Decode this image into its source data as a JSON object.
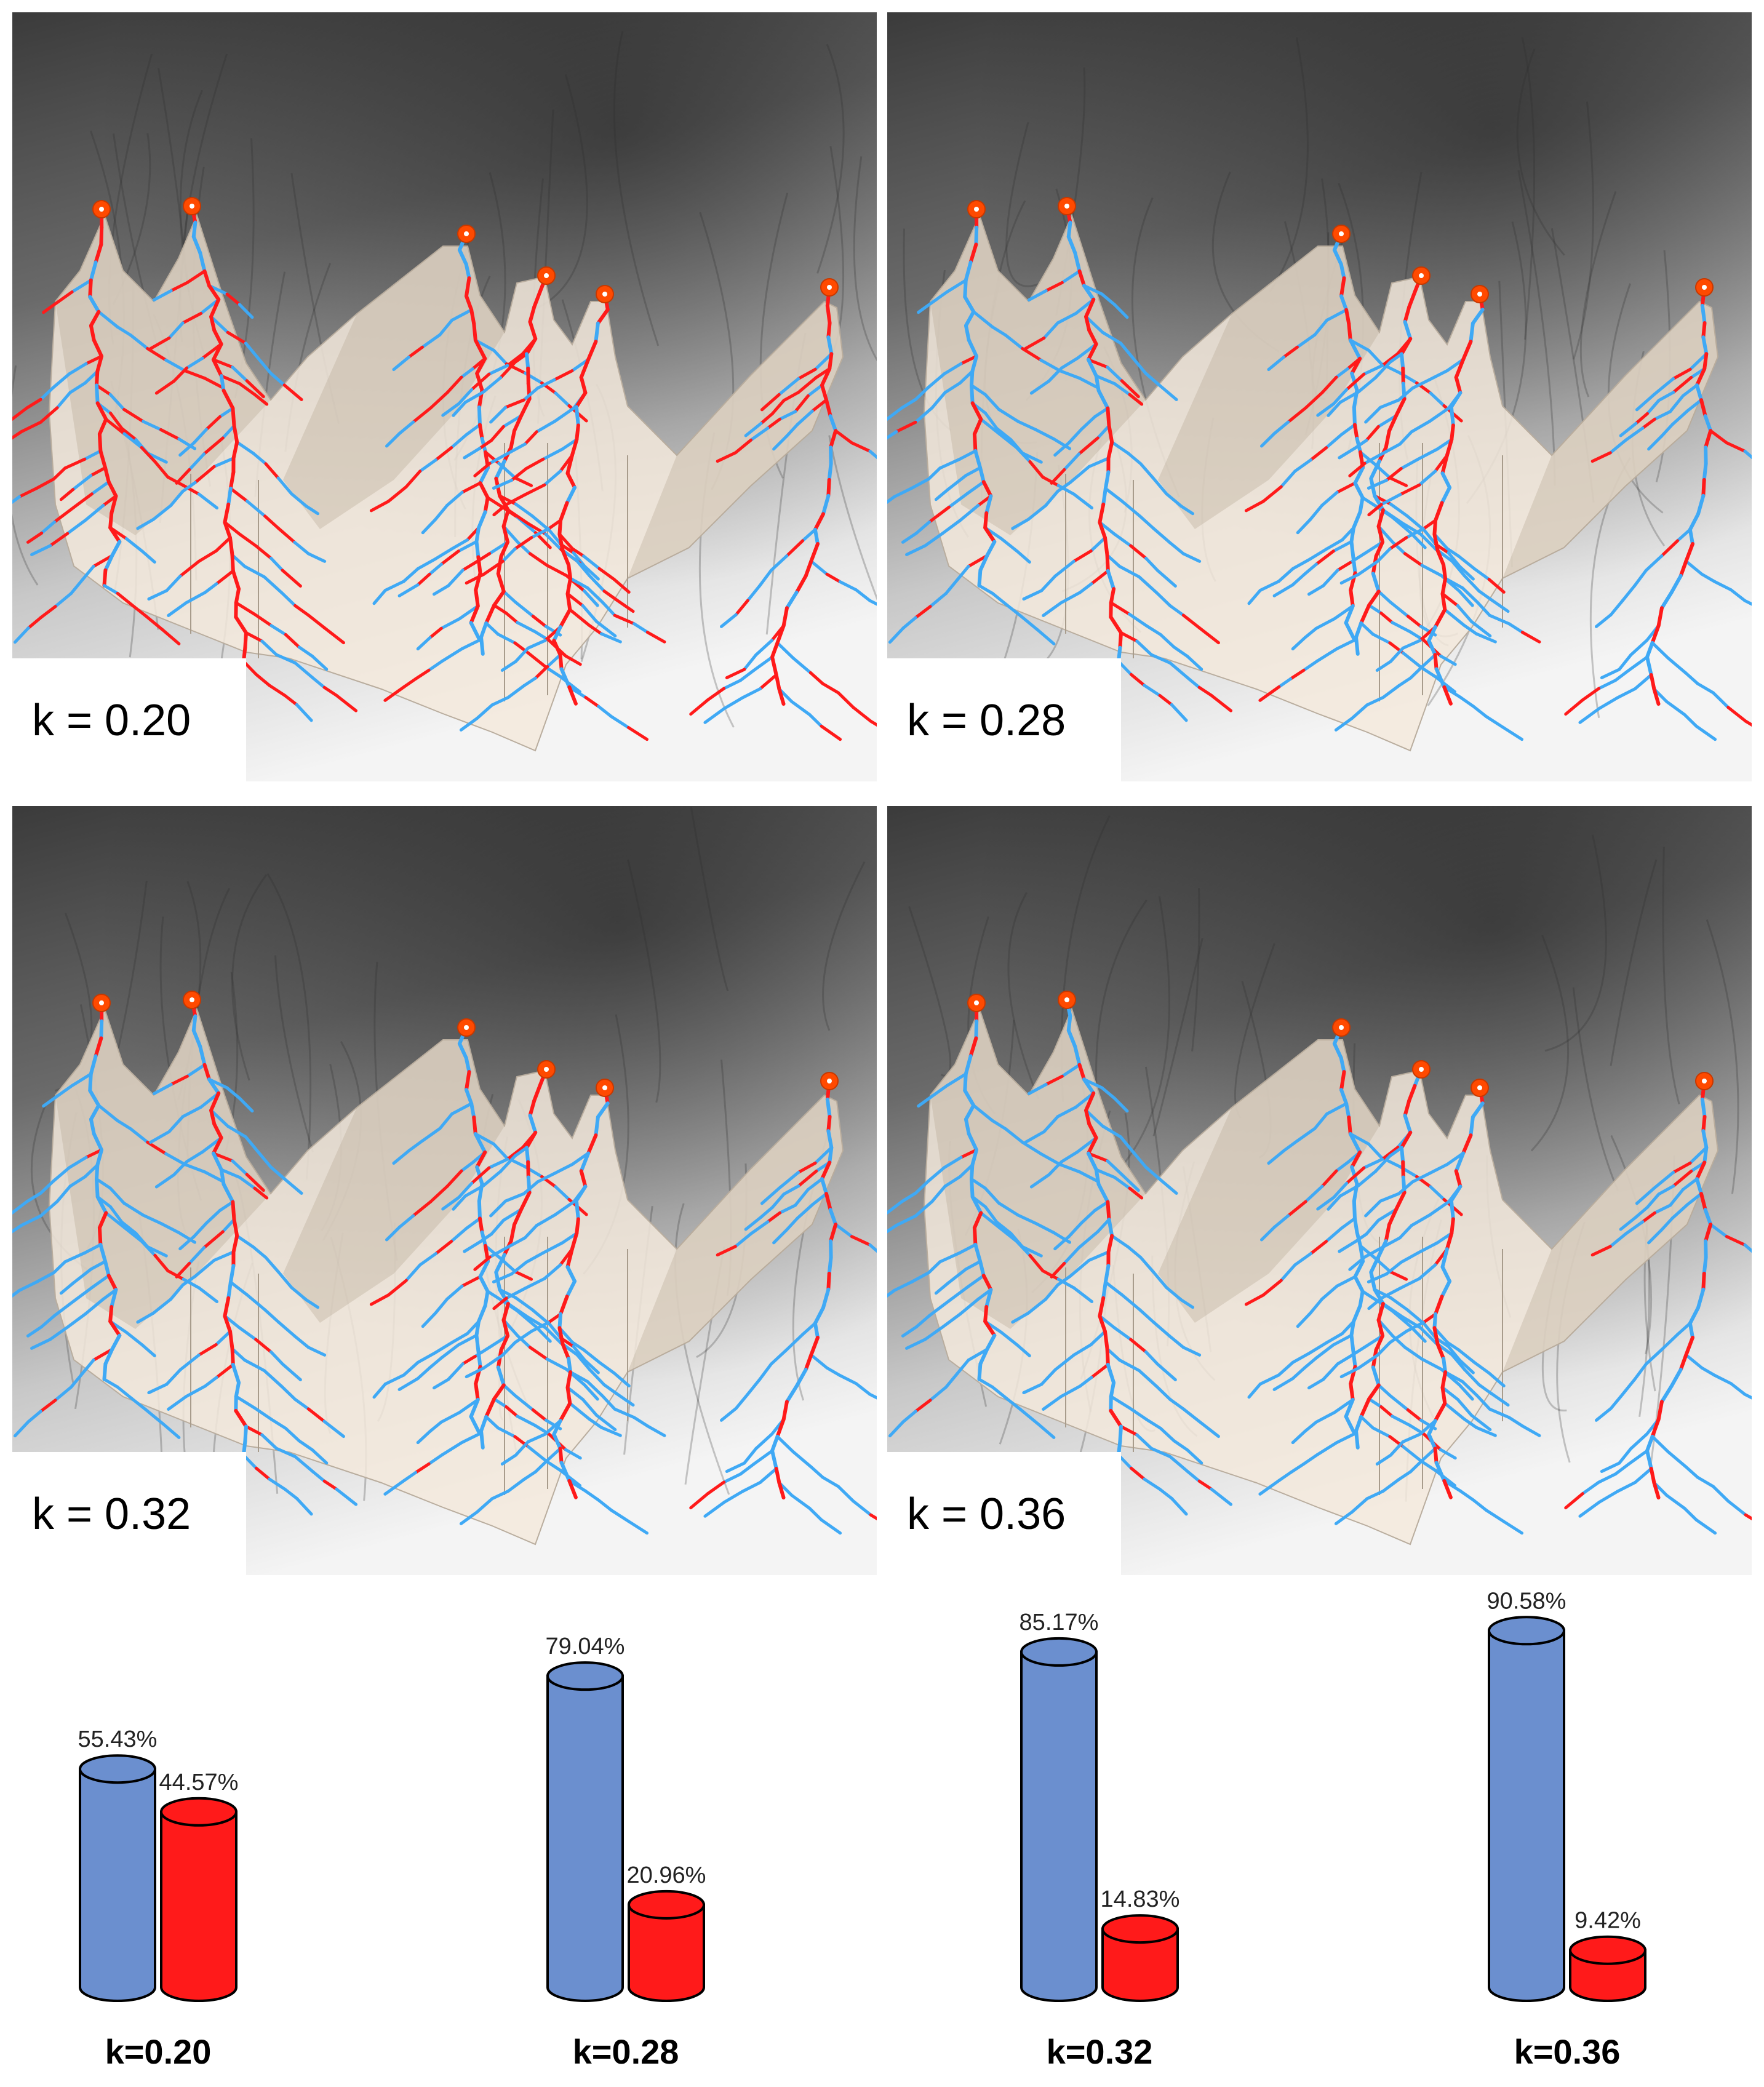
{
  "maps": [
    {
      "label": "k = 0.20"
    },
    {
      "label": "k = 0.28"
    },
    {
      "label": "k = 0.32"
    },
    {
      "label": "k = 0.36"
    }
  ],
  "colors": {
    "blue_bar": "#6b8fcf",
    "red_bar": "#ff1a1a",
    "stream_blue": "#3fa9f5",
    "stream_red": "#ff1a1a",
    "outlet": "#ff4a00",
    "basin_fill": "#f3e9dc"
  },
  "chart_data": {
    "type": "bar",
    "categories": [
      "k=0.20",
      "k=0.28",
      "k=0.32",
      "k=0.36"
    ],
    "series": [
      {
        "values": [
          55.43,
          79.04,
          85.17,
          90.58
        ],
        "color": "#6b8fcf"
      },
      {
        "values": [
          44.57,
          20.96,
          14.83,
          9.42
        ],
        "color": "#ff1a1a"
      }
    ],
    "value_labels": [
      [
        "55.43%",
        "44.57%"
      ],
      [
        "79.04%",
        "20.96%"
      ],
      [
        "85.17%",
        "14.83%"
      ],
      [
        "90.58%",
        "9.42%"
      ]
    ],
    "ylim": [
      0,
      100
    ],
    "bar_style": "3d-cylinder",
    "grid": false
  }
}
